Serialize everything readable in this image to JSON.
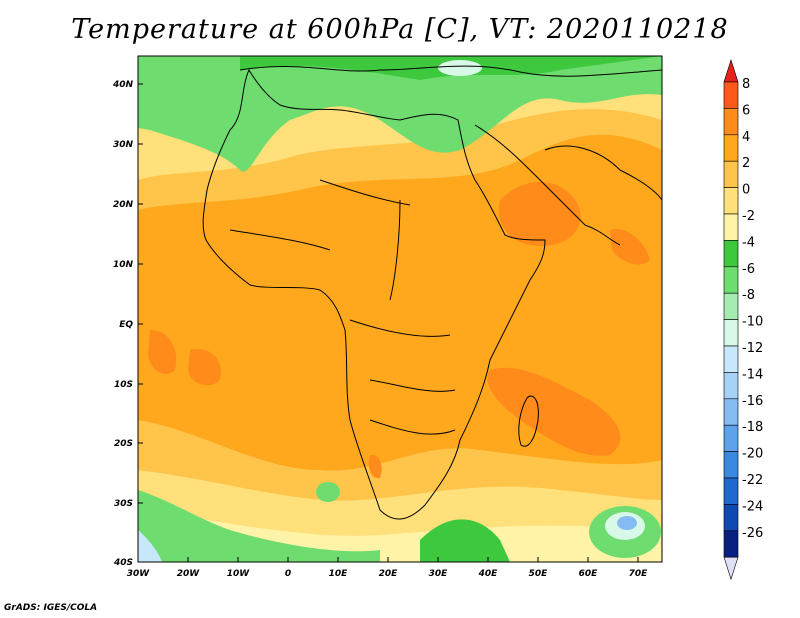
{
  "title": "Temperature at 600hPa [C], VT: 2020110218",
  "credit": "GrADS: IGES/COLA",
  "lat_labels": [
    "40N",
    "30N",
    "20N",
    "10N",
    "EQ",
    "10S",
    "20S",
    "30S",
    "40S"
  ],
  "lon_labels": [
    "30W",
    "20W",
    "10W",
    "0",
    "10E",
    "20E",
    "30E",
    "40E",
    "50E",
    "60E",
    "70E"
  ],
  "colorbar": {
    "labels": [
      "8",
      "6",
      "4",
      "2",
      "0",
      "-2",
      "-4",
      "-6",
      "-8",
      "-10",
      "-12",
      "-14",
      "-16",
      "-18",
      "-20",
      "-22",
      "-24",
      "-26"
    ],
    "colors": [
      "#ff5a1a",
      "#ff8c1a",
      "#ffa81e",
      "#ffc44a",
      "#ffe07a",
      "#fff3a8",
      "#3ec83e",
      "#6fdc6f",
      "#a4ecb0",
      "#d8f8e8",
      "#c6e8fa",
      "#a6d2f6",
      "#84bcf2",
      "#5ea2ec",
      "#3a88e2",
      "#2068d0",
      "#1048b4",
      "#0a2080"
    ],
    "top_color": "#e8201a",
    "bottom_color": "#e0e0f8"
  }
}
